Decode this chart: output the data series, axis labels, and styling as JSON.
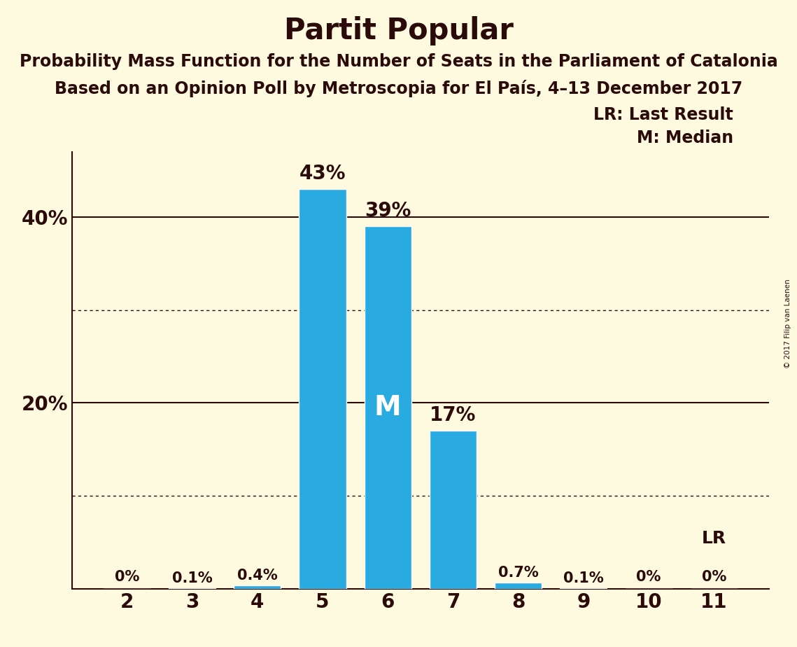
{
  "title": "Partit Popular",
  "subtitle1": "Probability Mass Function for the Number of Seats in the Parliament of Catalonia",
  "subtitle2": "Based on an Opinion Poll by Metroscopia for El País, 4–13 December 2017",
  "copyright": "© 2017 Filip van Laenen",
  "categories": [
    2,
    3,
    4,
    5,
    6,
    7,
    8,
    9,
    10,
    11
  ],
  "values": [
    0.0,
    0.1,
    0.4,
    43.0,
    39.0,
    17.0,
    0.7,
    0.1,
    0.0,
    0.0
  ],
  "labels": [
    "0%",
    "0.1%",
    "0.4%",
    "43%",
    "39%",
    "17%",
    "0.7%",
    "0.1%",
    "0%",
    "0%"
  ],
  "bar_color": "#29ABE2",
  "background_color": "#FEFAE0",
  "text_color": "#2B0A0A",
  "median_category": 6,
  "median_label": "M",
  "lr_category": 11,
  "lr_label": "LR",
  "legend_lr": "LR: Last Result",
  "legend_m": "M: Median",
  "ylim": [
    0,
    47
  ],
  "dotted_grid": [
    10,
    30
  ],
  "solid_grid": [
    20,
    40
  ],
  "title_fontsize": 30,
  "subtitle_fontsize": 17,
  "label_fontsize": 16,
  "tick_fontsize": 18,
  "legend_fontsize": 17,
  "median_label_fontsize": 28
}
